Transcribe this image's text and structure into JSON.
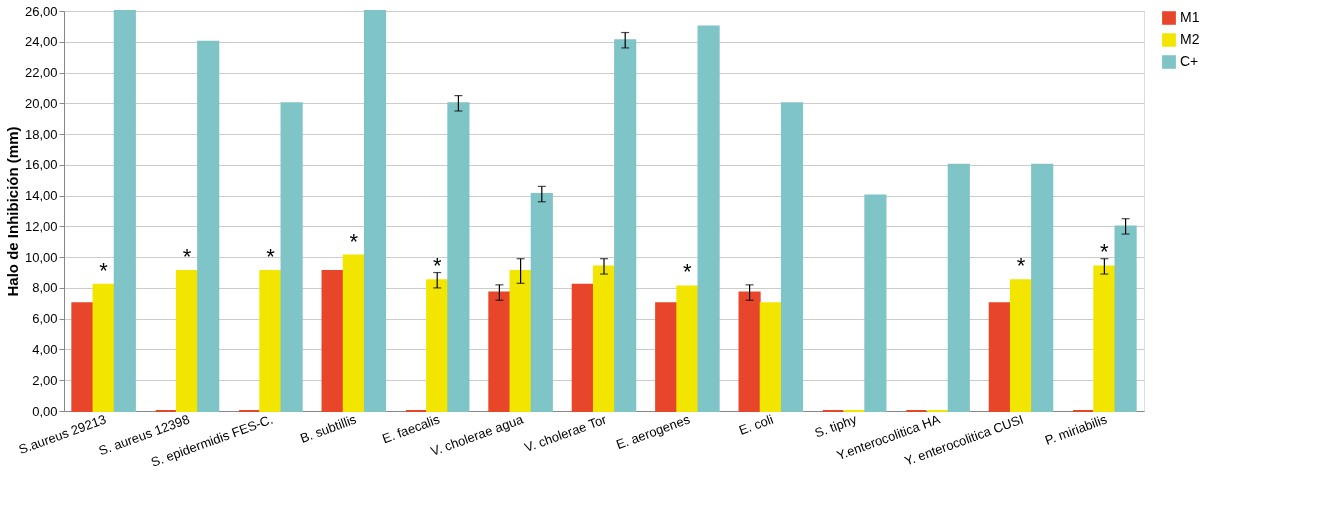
{
  "chart_data": {
    "type": "bar",
    "ylabel": "Halo de Inhibición (mm)",
    "categories": [
      "S.aureus 29213",
      "S. aureus 12398",
      "S. epidermidis FES-C.",
      "B. subtillis",
      "E. faecalis",
      "V. cholerae agua",
      "V. cholerae Tor",
      "E. aerogenes",
      "E. coli",
      "S. tiphy",
      "Y.enterocolitica HA",
      "Y. enterocolitica CUSI",
      "P. miriabilis"
    ],
    "series": [
      {
        "name": "M1",
        "color": "#e8462a",
        "values": [
          7.0,
          0,
          0,
          9.1,
          0,
          7.7,
          8.2,
          7.0,
          7.7,
          0,
          0,
          7.0,
          0
        ],
        "errors": [
          null,
          null,
          null,
          null,
          null,
          0.5,
          null,
          null,
          0.5,
          null,
          null,
          null,
          null
        ]
      },
      {
        "name": "M2",
        "color": "#f2e600",
        "values": [
          8.2,
          9.1,
          9.1,
          10.1,
          8.5,
          9.1,
          9.4,
          8.1,
          7.0,
          0,
          0,
          8.5,
          9.4
        ],
        "errors": [
          null,
          null,
          null,
          null,
          0.5,
          0.8,
          0.5,
          null,
          null,
          null,
          null,
          null,
          0.5
        ]
      },
      {
        "name": "C+",
        "color": "#7fc4c6",
        "values": [
          26.0,
          24.0,
          20.0,
          26.0,
          20.0,
          14.1,
          24.1,
          25.0,
          20.0,
          14.0,
          16.0,
          16.0,
          12.0
        ],
        "errors": [
          null,
          null,
          null,
          null,
          0.5,
          0.5,
          0.5,
          null,
          null,
          null,
          null,
          null,
          0.5
        ]
      }
    ],
    "ylim": [
      0,
      26
    ],
    "yticks": [
      {
        "value": 0,
        "label": "0,00"
      },
      {
        "value": 2,
        "label": "2,00"
      },
      {
        "value": 4,
        "label": "4,00"
      },
      {
        "value": 6,
        "label": "6,00"
      },
      {
        "value": 8,
        "label": "8,00"
      },
      {
        "value": 10,
        "label": "10,00"
      },
      {
        "value": 12,
        "label": "12,00"
      },
      {
        "value": 14,
        "label": "14,00"
      },
      {
        "value": 16,
        "label": "16,00"
      },
      {
        "value": 18,
        "label": "18,00"
      },
      {
        "value": 20,
        "label": "20,00"
      },
      {
        "value": 22,
        "label": "22,00"
      },
      {
        "value": 24,
        "label": "24,00"
      },
      {
        "value": 26,
        "label": "26,00"
      }
    ],
    "annotations": [
      {
        "text": "*",
        "x": "S.aureus 29213",
        "y": 8.2
      },
      {
        "text": "*",
        "x": "S. aureus 12398",
        "y": 9.1
      },
      {
        "text": "*",
        "x": "S. epidermidis FES-C.",
        "y": 9.1
      },
      {
        "text": "*",
        "x": "B. subtillis",
        "y": 10.1
      },
      {
        "text": "*",
        "x": "E. faecalis",
        "y": 8.5
      },
      {
        "text": "*",
        "x": "E. aerogenes",
        "y": 8.1
      },
      {
        "text": "*",
        "x": "Y. enterocolitica CUSI",
        "y": 8.5
      },
      {
        "text": "*",
        "x": "P. miriabilis",
        "y": 9.4
      }
    ],
    "grid": "y",
    "legend": "right"
  }
}
